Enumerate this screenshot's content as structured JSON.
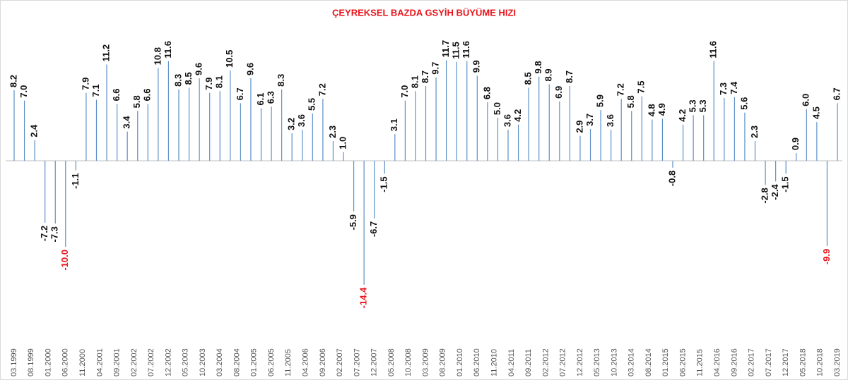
{
  "chart_data": {
    "type": "bar",
    "title": "ÇEYREKSEL BAZDA GSYİH BÜYÜME HIZI",
    "title_color": "#e8141b",
    "color": "#5b8fc7",
    "values": [
      8.2,
      7.0,
      2.4,
      -7.2,
      -7.3,
      -10.0,
      -1.1,
      7.9,
      7.1,
      11.2,
      6.6,
      3.4,
      5.8,
      6.6,
      10.8,
      11.6,
      8.3,
      8.5,
      9.6,
      7.9,
      8.1,
      10.5,
      6.7,
      9.6,
      6.1,
      6.3,
      8.3,
      3.2,
      3.6,
      5.5,
      7.2,
      2.3,
      1.0,
      -5.9,
      -14.4,
      -6.7,
      -1.5,
      3.1,
      7.0,
      8.1,
      8.7,
      9.7,
      11.7,
      11.5,
      11.6,
      9.9,
      6.8,
      5.0,
      3.6,
      4.2,
      8.5,
      9.8,
      8.9,
      6.9,
      8.7,
      2.9,
      3.7,
      5.9,
      3.6,
      7.2,
      5.8,
      7.5,
      4.8,
      4.9,
      -0.8,
      4.2,
      5.3,
      5.3,
      11.6,
      7.3,
      7.4,
      5.6,
      2.3,
      -2.8,
      -2.4,
      -1.5,
      0.9,
      6.0,
      4.5,
      -9.9,
      6.7
    ],
    "value_labels": [
      "8.2",
      "7.0",
      "2.4",
      "-7.2",
      "-7.3",
      "-10.0",
      "-1.1",
      "7.9",
      "7.1",
      "11.2",
      "6.6",
      "3.4",
      "5.8",
      "6.6",
      "10.8",
      "11.6",
      "8.3",
      "8.5",
      "9.6",
      "7.9",
      "8.1",
      "10.5",
      "6.7",
      "9.6",
      "6.1",
      "6.3",
      "8.3",
      "3.2",
      "3.6",
      "5.5",
      "7.2",
      "2.3",
      "1.0",
      "-5.9",
      "-14.4",
      "-6.7",
      "-1.5",
      "3.1",
      "7.0",
      "8.1",
      "8.7",
      "9.7",
      "11.7",
      "11.5",
      "11.6",
      "9.9",
      "6.8",
      "5.0",
      "3.6",
      "4.2",
      "8.5",
      "9.8",
      "8.9",
      "6.9",
      "8.7",
      "2.9",
      "3.7",
      "5.9",
      "3.6",
      "7.2",
      "5.8",
      "7.5",
      "4.8",
      "4.9",
      "-0.8",
      "4.2",
      "5.3",
      "5.3",
      "11.6",
      "7.3",
      "7.4",
      "5.6",
      "2.3",
      "-2.8",
      "-2.4",
      "-1.5",
      "0.9",
      "6.0",
      "4.5",
      "-9.9",
      "6.7"
    ],
    "label_colors": [
      "#111",
      "#111",
      "#111",
      "#111",
      "#111",
      "#e8141b",
      "#111",
      "#111",
      "#111",
      "#111",
      "#111",
      "#111",
      "#111",
      "#111",
      "#111",
      "#111",
      "#111",
      "#111",
      "#111",
      "#111",
      "#111",
      "#111",
      "#111",
      "#111",
      "#111",
      "#111",
      "#111",
      "#111",
      "#111",
      "#111",
      "#111",
      "#111",
      "#111",
      "#111",
      "#e8141b",
      "#111",
      "#111",
      "#111",
      "#111",
      "#111",
      "#111",
      "#111",
      "#111",
      "#111",
      "#111",
      "#111",
      "#111",
      "#111",
      "#111",
      "#111",
      "#111",
      "#111",
      "#111",
      "#111",
      "#111",
      "#111",
      "#111",
      "#111",
      "#111",
      "#111",
      "#111",
      "#111",
      "#111",
      "#111",
      "#111",
      "#111",
      "#111",
      "#111",
      "#111",
      "#111",
      "#111",
      "#111",
      "#111",
      "#111",
      "#111",
      "#111",
      "#111",
      "#111",
      "#111",
      "#e8141b",
      "#111"
    ],
    "xticks": [
      "03.1999",
      "08.1999",
      "01.2000",
      "06.2000",
      "11.2000",
      "04.2001",
      "09.2001",
      "02.2002",
      "07.2002",
      "12.2002",
      "05.2003",
      "10.2003",
      "03.2004",
      "08.2004",
      "01.2005",
      "06.2005",
      "11.2005",
      "04.2006",
      "09.2006",
      "02.2007",
      "07.2007",
      "12.2007",
      "05.2008",
      "10.2008",
      "03.2009",
      "08.2009",
      "01.2010",
      "06.2010",
      "11.2010",
      "04.2011",
      "09.2011",
      "02.2012",
      "07.2012",
      "12.2012",
      "05.2013",
      "10.2013",
      "03.2014",
      "08.2014",
      "01.2015",
      "06.2015",
      "11.2015",
      "04.2016",
      "09.2016",
      "02.2017",
      "07.2017",
      "12.2017",
      "05.2018",
      "10.2018",
      "03.2019"
    ],
    "ylim": [
      -20,
      15.5
    ]
  }
}
